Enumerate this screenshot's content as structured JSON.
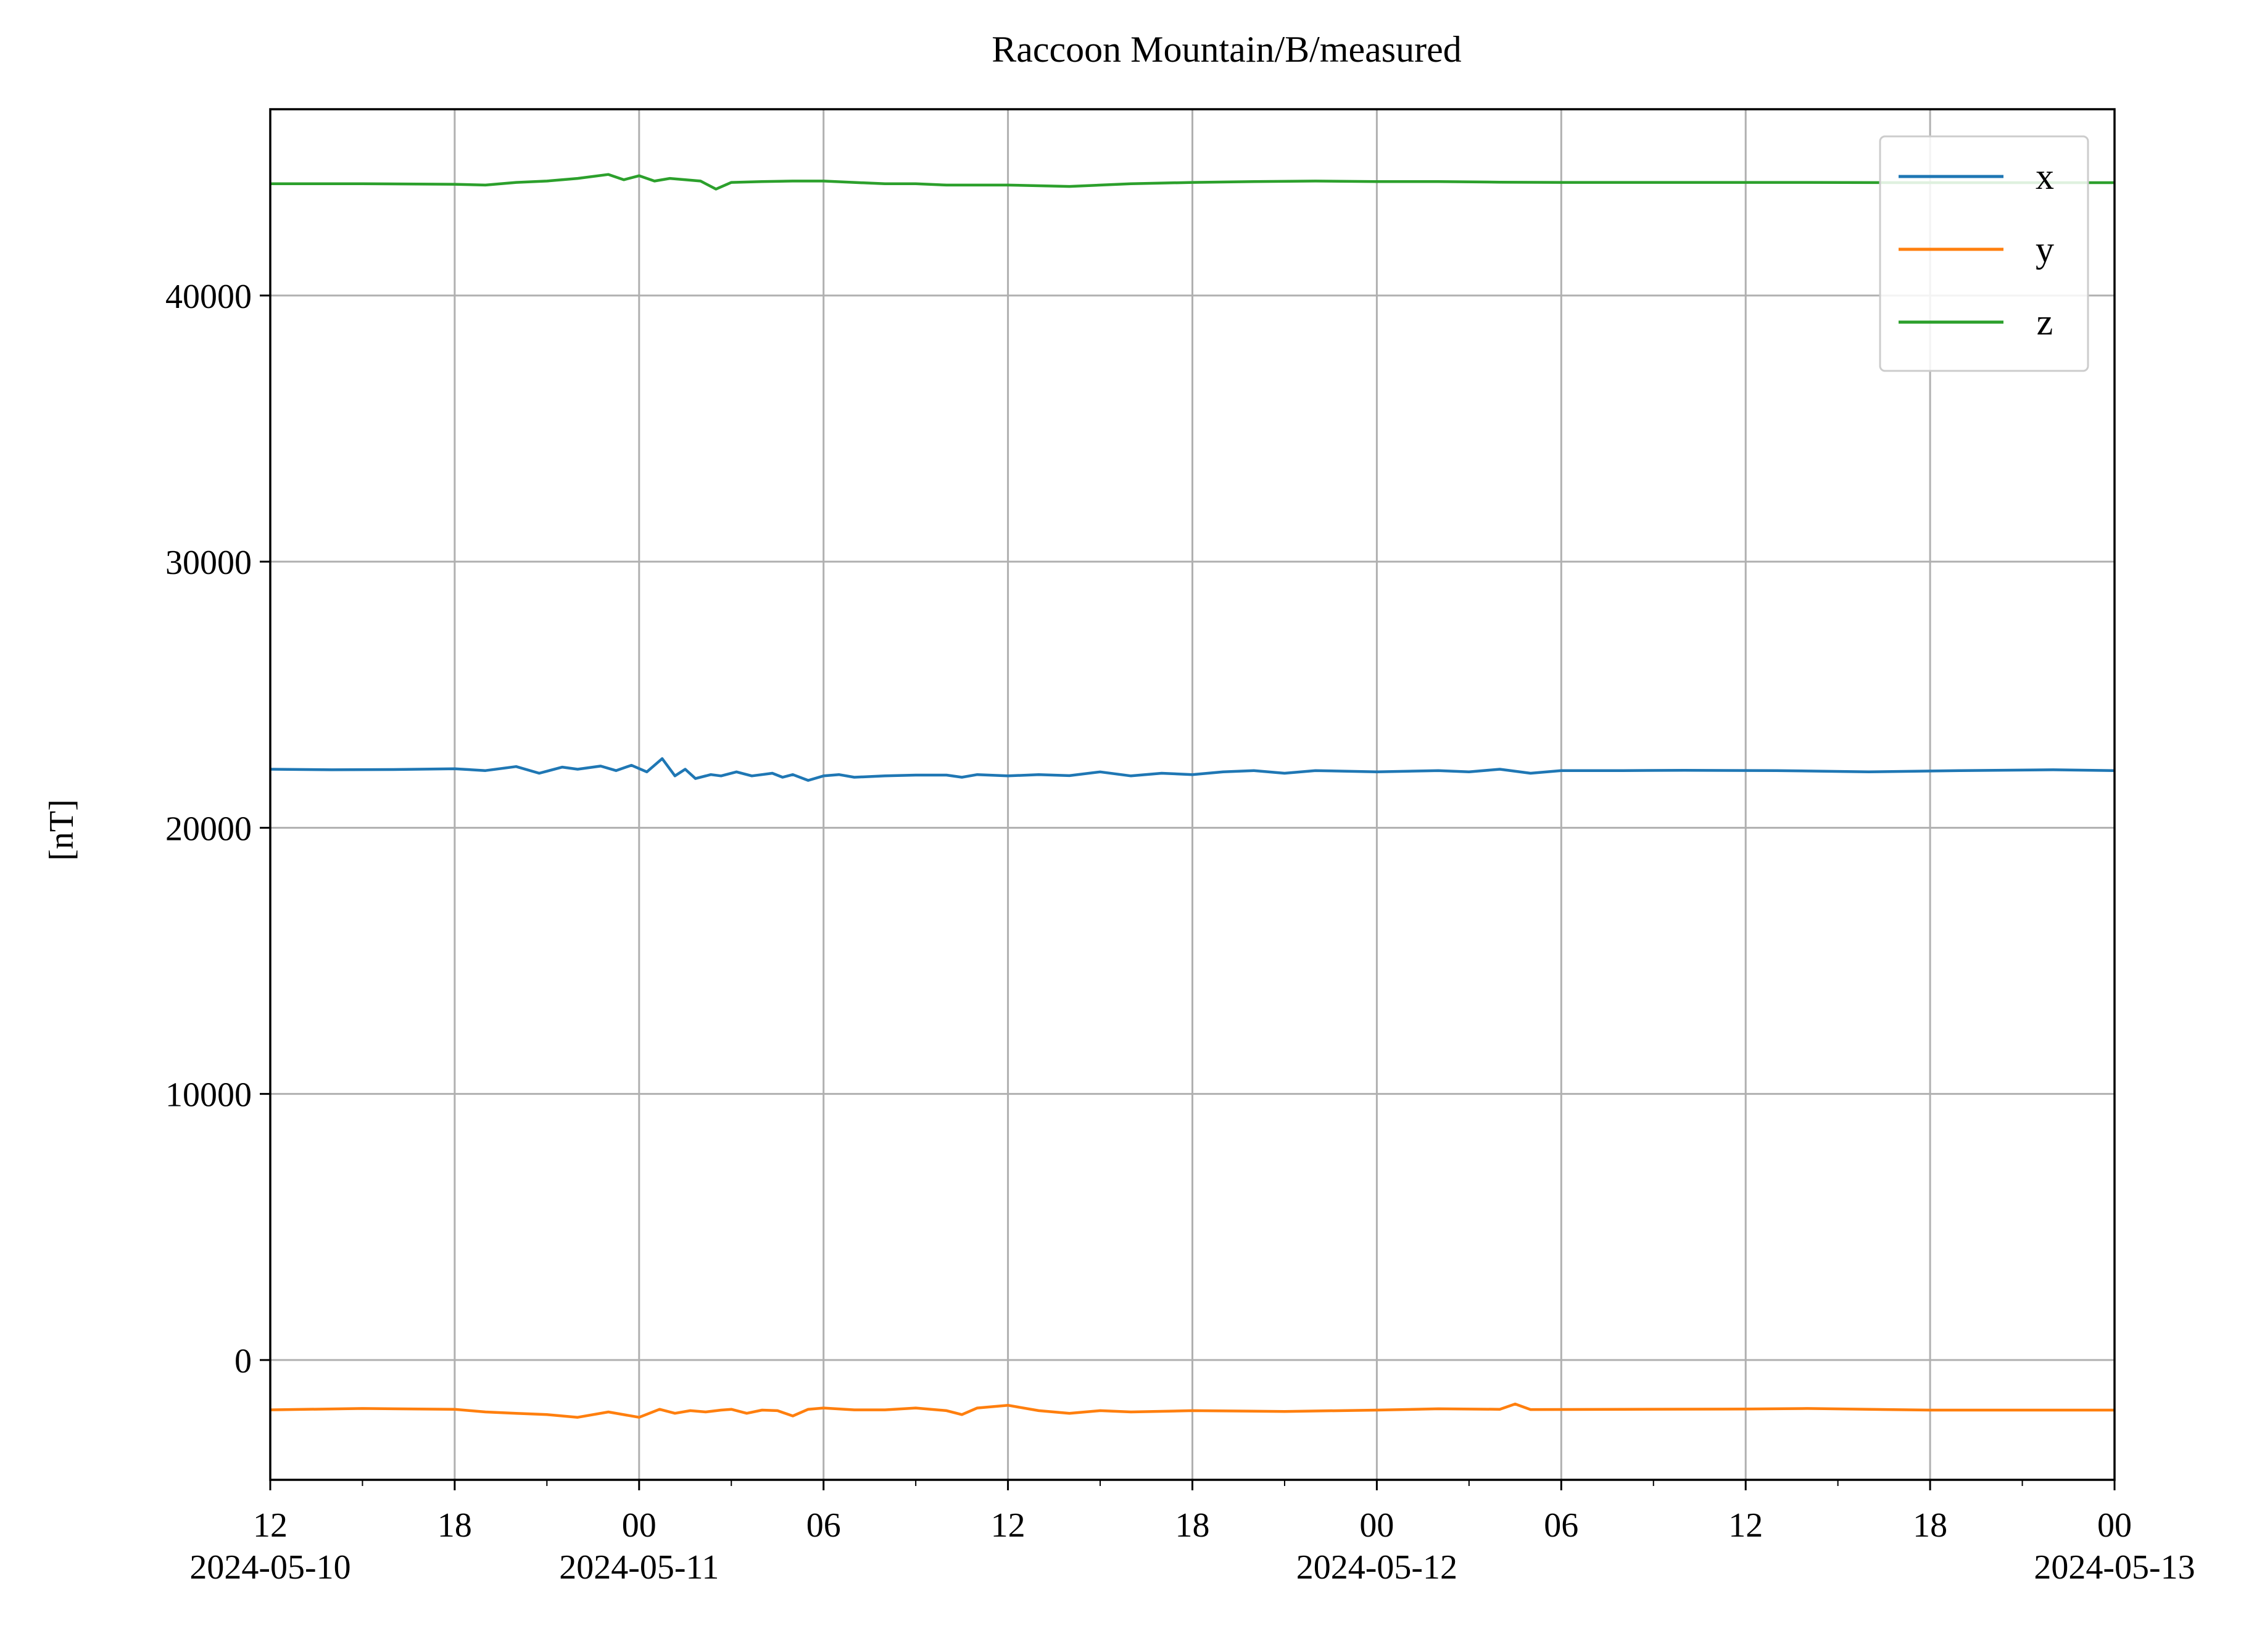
{
  "chart_data": {
    "type": "line",
    "title": "Raccoon Mountain/B/measured",
    "xlabel": "",
    "ylabel": "[nT]",
    "x_range": [
      "2024-05-10 12:00",
      "2024-05-13 00:00"
    ],
    "ylim": [
      -4500,
      47000
    ],
    "grid": true,
    "legend_position": "top-right",
    "x_ticks": [
      {
        "t": "2024-05-10 12:00",
        "label": "12",
        "date": "2024-05-10"
      },
      {
        "t": "2024-05-10 18:00",
        "label": "18",
        "date": ""
      },
      {
        "t": "2024-05-11 00:00",
        "label": "00",
        "date": "2024-05-11"
      },
      {
        "t": "2024-05-11 06:00",
        "label": "06",
        "date": ""
      },
      {
        "t": "2024-05-11 12:00",
        "label": "12",
        "date": ""
      },
      {
        "t": "2024-05-11 18:00",
        "label": "18",
        "date": ""
      },
      {
        "t": "2024-05-12 00:00",
        "label": "00",
        "date": "2024-05-12"
      },
      {
        "t": "2024-05-12 06:00",
        "label": "06",
        "date": ""
      },
      {
        "t": "2024-05-12 12:00",
        "label": "12",
        "date": ""
      },
      {
        "t": "2024-05-12 18:00",
        "label": "18",
        "date": ""
      },
      {
        "t": "2024-05-13 00:00",
        "label": "00",
        "date": "2024-05-13"
      }
    ],
    "x_minor_ticks": [
      "2024-05-10 15:00",
      "2024-05-10 21:00",
      "2024-05-11 03:00",
      "2024-05-11 09:00",
      "2024-05-11 15:00",
      "2024-05-11 21:00",
      "2024-05-12 03:00",
      "2024-05-12 09:00",
      "2024-05-12 15:00",
      "2024-05-12 21:00"
    ],
    "y_ticks": [
      0,
      10000,
      20000,
      30000,
      40000
    ],
    "y_tick_labels": [
      "0",
      "10000",
      "20000",
      "30000",
      "40000"
    ],
    "series": [
      {
        "name": "x",
        "color": "#1f77b4",
        "points": [
          [
            "2024-05-10 12:00",
            22200
          ],
          [
            "2024-05-10 14:00",
            22180
          ],
          [
            "2024-05-10 16:00",
            22190
          ],
          [
            "2024-05-10 18:00",
            22220
          ],
          [
            "2024-05-10 19:00",
            22150
          ],
          [
            "2024-05-10 20:00",
            22300
          ],
          [
            "2024-05-10 20:45",
            22050
          ],
          [
            "2024-05-10 21:30",
            22280
          ],
          [
            "2024-05-10 22:00",
            22200
          ],
          [
            "2024-05-10 22:45",
            22320
          ],
          [
            "2024-05-10 23:15",
            22150
          ],
          [
            "2024-05-10 23:45",
            22350
          ],
          [
            "2024-05-11 00:15",
            22100
          ],
          [
            "2024-05-11 00:45",
            22600
          ],
          [
            "2024-05-11 01:10",
            21950
          ],
          [
            "2024-05-11 01:30",
            22200
          ],
          [
            "2024-05-11 01:50",
            21850
          ],
          [
            "2024-05-11 02:20",
            22000
          ],
          [
            "2024-05-11 02:40",
            21950
          ],
          [
            "2024-05-11 03:10",
            22100
          ],
          [
            "2024-05-11 03:40",
            21950
          ],
          [
            "2024-05-11 04:00",
            22000
          ],
          [
            "2024-05-11 04:20",
            22050
          ],
          [
            "2024-05-11 04:40",
            21900
          ],
          [
            "2024-05-11 05:00",
            22000
          ],
          [
            "2024-05-11 05:30",
            21780
          ],
          [
            "2024-05-11 06:00",
            21950
          ],
          [
            "2024-05-11 06:30",
            22000
          ],
          [
            "2024-05-11 07:00",
            21900
          ],
          [
            "2024-05-11 08:00",
            21950
          ],
          [
            "2024-05-11 09:00",
            21980
          ],
          [
            "2024-05-11 10:00",
            21980
          ],
          [
            "2024-05-11 10:30",
            21900
          ],
          [
            "2024-05-11 11:00",
            22000
          ],
          [
            "2024-05-11 12:00",
            21950
          ],
          [
            "2024-05-11 13:00",
            22000
          ],
          [
            "2024-05-11 14:00",
            21960
          ],
          [
            "2024-05-11 15:00",
            22100
          ],
          [
            "2024-05-11 16:00",
            21950
          ],
          [
            "2024-05-11 17:00",
            22050
          ],
          [
            "2024-05-11 18:00",
            22000
          ],
          [
            "2024-05-11 19:00",
            22100
          ],
          [
            "2024-05-11 20:00",
            22150
          ],
          [
            "2024-05-11 21:00",
            22050
          ],
          [
            "2024-05-11 22:00",
            22150
          ],
          [
            "2024-05-12 00:00",
            22100
          ],
          [
            "2024-05-12 02:00",
            22150
          ],
          [
            "2024-05-12 03:00",
            22100
          ],
          [
            "2024-05-12 04:00",
            22200
          ],
          [
            "2024-05-12 05:00",
            22050
          ],
          [
            "2024-05-12 06:00",
            22150
          ],
          [
            "2024-05-12 08:00",
            22150
          ],
          [
            "2024-05-12 10:00",
            22160
          ],
          [
            "2024-05-12 13:00",
            22150
          ],
          [
            "2024-05-12 16:00",
            22100
          ],
          [
            "2024-05-12 19:00",
            22150
          ],
          [
            "2024-05-12 22:00",
            22180
          ],
          [
            "2024-05-13 00:00",
            22150
          ]
        ]
      },
      {
        "name": "y",
        "color": "#ff7f0e",
        "points": [
          [
            "2024-05-10 12:00",
            -1870
          ],
          [
            "2024-05-10 15:00",
            -1820
          ],
          [
            "2024-05-10 18:00",
            -1850
          ],
          [
            "2024-05-10 19:00",
            -1950
          ],
          [
            "2024-05-10 20:00",
            -2000
          ],
          [
            "2024-05-10 21:00",
            -2050
          ],
          [
            "2024-05-10 22:00",
            -2150
          ],
          [
            "2024-05-10 23:00",
            -1950
          ],
          [
            "2024-05-11 00:00",
            -2150
          ],
          [
            "2024-05-11 00:40",
            -1850
          ],
          [
            "2024-05-11 01:10",
            -2000
          ],
          [
            "2024-05-11 01:40",
            -1900
          ],
          [
            "2024-05-11 02:10",
            -1950
          ],
          [
            "2024-05-11 02:40",
            -1880
          ],
          [
            "2024-05-11 03:00",
            -1850
          ],
          [
            "2024-05-11 03:30",
            -2000
          ],
          [
            "2024-05-11 04:00",
            -1880
          ],
          [
            "2024-05-11 04:30",
            -1900
          ],
          [
            "2024-05-11 05:00",
            -2100
          ],
          [
            "2024-05-11 05:30",
            -1850
          ],
          [
            "2024-05-11 06:00",
            -1800
          ],
          [
            "2024-05-11 07:00",
            -1870
          ],
          [
            "2024-05-11 08:00",
            -1870
          ],
          [
            "2024-05-11 09:00",
            -1800
          ],
          [
            "2024-05-11 10:00",
            -1900
          ],
          [
            "2024-05-11 10:30",
            -2050
          ],
          [
            "2024-05-11 11:00",
            -1800
          ],
          [
            "2024-05-11 12:00",
            -1700
          ],
          [
            "2024-05-11 13:00",
            -1900
          ],
          [
            "2024-05-11 14:00",
            -2000
          ],
          [
            "2024-05-11 15:00",
            -1900
          ],
          [
            "2024-05-11 16:00",
            -1950
          ],
          [
            "2024-05-11 18:00",
            -1900
          ],
          [
            "2024-05-11 21:00",
            -1930
          ],
          [
            "2024-05-12 00:00",
            -1880
          ],
          [
            "2024-05-12 02:00",
            -1830
          ],
          [
            "2024-05-12 04:00",
            -1850
          ],
          [
            "2024-05-12 04:30",
            -1650
          ],
          [
            "2024-05-12 05:00",
            -1860
          ],
          [
            "2024-05-12 08:00",
            -1850
          ],
          [
            "2024-05-12 12:00",
            -1840
          ],
          [
            "2024-05-12 14:00",
            -1820
          ],
          [
            "2024-05-12 18:00",
            -1880
          ],
          [
            "2024-05-13 00:00",
            -1880
          ]
        ]
      },
      {
        "name": "z",
        "color": "#2ca02c",
        "points": [
          [
            "2024-05-10 12:00",
            44200
          ],
          [
            "2024-05-10 15:00",
            44200
          ],
          [
            "2024-05-10 18:00",
            44180
          ],
          [
            "2024-05-10 19:00",
            44150
          ],
          [
            "2024-05-10 20:00",
            44250
          ],
          [
            "2024-05-10 21:00",
            44300
          ],
          [
            "2024-05-10 22:00",
            44400
          ],
          [
            "2024-05-10 23:00",
            44550
          ],
          [
            "2024-05-10 23:30",
            44350
          ],
          [
            "2024-05-11 00:00",
            44500
          ],
          [
            "2024-05-11 00:30",
            44300
          ],
          [
            "2024-05-11 01:00",
            44400
          ],
          [
            "2024-05-11 02:00",
            44300
          ],
          [
            "2024-05-11 02:30",
            44000
          ],
          [
            "2024-05-11 03:00",
            44250
          ],
          [
            "2024-05-11 04:00",
            44280
          ],
          [
            "2024-05-11 05:00",
            44300
          ],
          [
            "2024-05-11 06:00",
            44300
          ],
          [
            "2024-05-11 07:00",
            44250
          ],
          [
            "2024-05-11 08:00",
            44200
          ],
          [
            "2024-05-11 09:00",
            44200
          ],
          [
            "2024-05-11 10:00",
            44150
          ],
          [
            "2024-05-11 12:00",
            44150
          ],
          [
            "2024-05-11 14:00",
            44100
          ],
          [
            "2024-05-11 16:00",
            44200
          ],
          [
            "2024-05-11 18:00",
            44250
          ],
          [
            "2024-05-11 20:00",
            44280
          ],
          [
            "2024-05-11 22:00",
            44300
          ],
          [
            "2024-05-12 00:00",
            44280
          ],
          [
            "2024-05-12 02:00",
            44280
          ],
          [
            "2024-05-12 04:00",
            44260
          ],
          [
            "2024-05-12 06:00",
            44250
          ],
          [
            "2024-05-12 10:00",
            44250
          ],
          [
            "2024-05-12 14:00",
            44250
          ],
          [
            "2024-05-12 18:00",
            44240
          ],
          [
            "2024-05-13 00:00",
            44240
          ]
        ]
      }
    ]
  }
}
